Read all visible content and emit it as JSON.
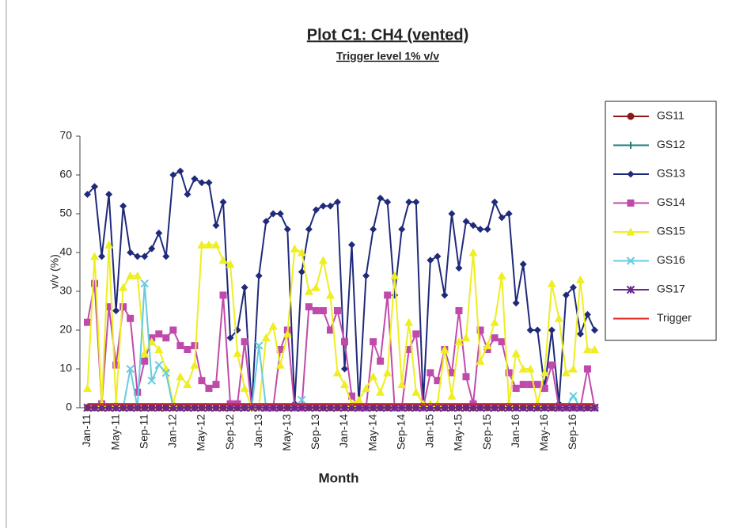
{
  "chart_data": {
    "type": "line",
    "title": "Plot C1: CH4 (vented)",
    "subtitle": "Trigger level 1% v/v",
    "x_label": "Month",
    "y_label": "v/v (%)",
    "categories": [
      "Jan-11",
      null,
      null,
      null,
      "May-11",
      null,
      null,
      null,
      "Sep-11",
      null,
      null,
      null,
      "Jan-12",
      null,
      null,
      null,
      "May-12",
      null,
      null,
      null,
      "Sep-12",
      null,
      null,
      null,
      "Jan-13",
      null,
      null,
      null,
      "May-13",
      null,
      null,
      null,
      "Sep-13",
      null,
      null,
      null,
      "Jan-14",
      null,
      null,
      null,
      "May-14",
      null,
      null,
      null,
      "Sep-14",
      null,
      null,
      null,
      "Jan-15",
      null,
      null,
      null,
      "May-15",
      null,
      null,
      null,
      "Sep-15",
      null,
      null,
      null,
      "Jan-16",
      null,
      null,
      null,
      "May-16",
      null,
      null,
      null,
      "Sep-16",
      null,
      null,
      null
    ],
    "ylim": [
      0,
      70
    ],
    "yticks": [
      0,
      10,
      20,
      30,
      40,
      50,
      60,
      70
    ],
    "grid": false,
    "legend": "right",
    "series": [
      {
        "name": "GS11",
        "color": "#8b1a1a",
        "marker": "circle",
        "values": [
          0,
          0,
          0,
          0,
          0,
          0,
          0,
          0,
          0,
          0,
          0,
          0,
          0,
          0,
          0,
          0,
          0,
          0,
          0,
          0,
          0,
          0,
          0,
          0,
          0,
          0,
          0,
          0,
          0,
          0,
          0,
          0,
          0,
          0,
          0,
          0,
          0,
          0,
          0,
          0,
          0,
          0,
          0,
          0,
          0,
          0,
          0,
          0,
          0,
          0,
          0,
          0,
          0,
          0,
          0,
          0,
          0,
          0,
          0,
          0,
          0,
          0,
          0,
          0,
          0,
          0,
          0,
          0,
          0,
          0,
          0,
          0
        ]
      },
      {
        "name": "GS12",
        "color": "#1a7a7a",
        "marker": "plus",
        "values": [
          0,
          0,
          0,
          0,
          0,
          0,
          0,
          0,
          0,
          0,
          0,
          0,
          0,
          0,
          0,
          0,
          0,
          0,
          0,
          0,
          0,
          0,
          0,
          0,
          0,
          0,
          0,
          0,
          0,
          0,
          0,
          0,
          0,
          0,
          0,
          0,
          0,
          0,
          0,
          0,
          0,
          0,
          0,
          0,
          0,
          0,
          0,
          0,
          0,
          0,
          0,
          0,
          0,
          0,
          0,
          0,
          0,
          0,
          0,
          0,
          0,
          0,
          0,
          0,
          0,
          0,
          0,
          0,
          0,
          0,
          0,
          0
        ]
      },
      {
        "name": "GS13",
        "color": "#1f2a7a",
        "marker": "diamond",
        "values": [
          55,
          57,
          39,
          55,
          25,
          52,
          40,
          39,
          39,
          41,
          45,
          39,
          60,
          61,
          55,
          59,
          58,
          58,
          47,
          53,
          18,
          20,
          31,
          0,
          34,
          48,
          50,
          50,
          46,
          1,
          35,
          46,
          51,
          52,
          52,
          53,
          10,
          42,
          1,
          34,
          46,
          54,
          53,
          29,
          46,
          53,
          53,
          1,
          38,
          39,
          29,
          50,
          36,
          48,
          47,
          46,
          46,
          53,
          49,
          50,
          27,
          37,
          20,
          20,
          5,
          20,
          1,
          29,
          31,
          19,
          24,
          20
        ]
      },
      {
        "name": "GS14",
        "color": "#c04aab",
        "marker": "square",
        "values": [
          22,
          32,
          1,
          26,
          11,
          26,
          23,
          4,
          12,
          18,
          19,
          18,
          20,
          16,
          15,
          16,
          7,
          5,
          6,
          29,
          1,
          1,
          17,
          0,
          0,
          0,
          0,
          15,
          20,
          0,
          0,
          26,
          25,
          25,
          20,
          25,
          17,
          3,
          0,
          0,
          17,
          12,
          29,
          0,
          0,
          15,
          19,
          0,
          9,
          7,
          15,
          9,
          25,
          8,
          1,
          20,
          15,
          18,
          17,
          9,
          5,
          6,
          6,
          6,
          5,
          11,
          0,
          0,
          0,
          0,
          10,
          0
        ]
      },
      {
        "name": "GS15",
        "color": "#eeee22",
        "marker": "triangle",
        "values": [
          5,
          39,
          1,
          42,
          1,
          31,
          34,
          34,
          14,
          17,
          15,
          10,
          1,
          8,
          6,
          11,
          42,
          42,
          42,
          38,
          37,
          14,
          5,
          0,
          0,
          18,
          21,
          11,
          19,
          41,
          40,
          30,
          31,
          38,
          29,
          9,
          6,
          1,
          2,
          5,
          8,
          4,
          9,
          34,
          6,
          22,
          4,
          1,
          1,
          1,
          15,
          3,
          17,
          18,
          40,
          12,
          16,
          22,
          34,
          1,
          14,
          10,
          10,
          1,
          9,
          32,
          23,
          9,
          10,
          33,
          15,
          15
        ]
      },
      {
        "name": "GS16",
        "color": "#66cce0",
        "marker": "x",
        "values": [
          0,
          0,
          0,
          0,
          0,
          0,
          10,
          0,
          32,
          7,
          11,
          9,
          0,
          0,
          0,
          0,
          0,
          0,
          0,
          0,
          0,
          0,
          0,
          0,
          16,
          0,
          0,
          0,
          0,
          0,
          2,
          0,
          0,
          0,
          0,
          0,
          0,
          0,
          0,
          0,
          0,
          0,
          0,
          0,
          0,
          0,
          0,
          0,
          0,
          0,
          0,
          0,
          0,
          0,
          0,
          0,
          0,
          0,
          0,
          0,
          0,
          0,
          0,
          0,
          0,
          0,
          0,
          0,
          3,
          0,
          0,
          0
        ]
      },
      {
        "name": "GS17",
        "color": "#6a2a8a",
        "marker": "star",
        "values": [
          0,
          0,
          0,
          0,
          0,
          0,
          0,
          0,
          0,
          0,
          0,
          0,
          0,
          0,
          0,
          0,
          0,
          0,
          0,
          0,
          0,
          0,
          0,
          0,
          0,
          0,
          0,
          0,
          0,
          0,
          0,
          0,
          0,
          0,
          0,
          0,
          0,
          0,
          0,
          0,
          0,
          0,
          0,
          0,
          0,
          0,
          0,
          0,
          0,
          0,
          0,
          0,
          0,
          0,
          0,
          0,
          0,
          0,
          0,
          0,
          0,
          0,
          0,
          0,
          0,
          0,
          0,
          0,
          0,
          0,
          0,
          0
        ]
      },
      {
        "name": "Trigger",
        "color": "#e8201a",
        "marker": "none",
        "values": [
          1,
          1,
          1,
          1,
          1,
          1,
          1,
          1,
          1,
          1,
          1,
          1,
          1,
          1,
          1,
          1,
          1,
          1,
          1,
          1,
          1,
          1,
          1,
          1,
          1,
          1,
          1,
          1,
          1,
          1,
          1,
          1,
          1,
          1,
          1,
          1,
          1,
          1,
          1,
          1,
          1,
          1,
          1,
          1,
          1,
          1,
          1,
          1,
          1,
          1,
          1,
          1,
          1,
          1,
          1,
          1,
          1,
          1,
          1,
          1,
          1,
          1,
          1,
          1,
          1,
          1,
          1,
          1,
          1,
          1,
          1,
          1
        ]
      }
    ]
  }
}
